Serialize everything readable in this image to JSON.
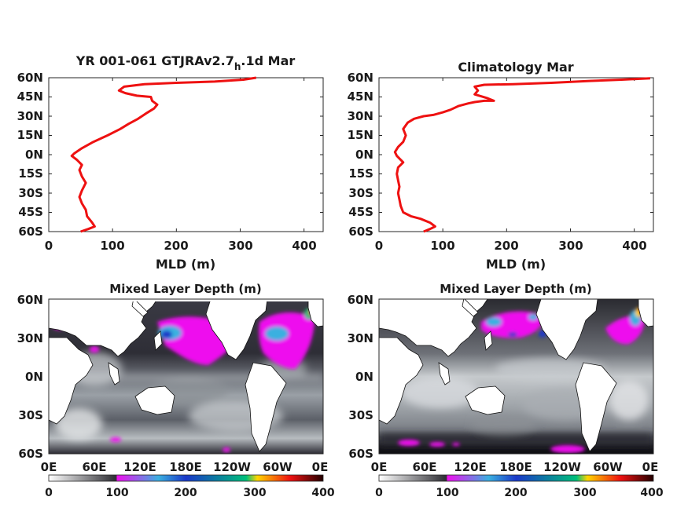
{
  "chart_data": [
    {
      "type": "line",
      "title": "YR 001-061 GTJRAv2.7",
      "title_subscript": "h",
      "title_suffix": ".1d Mar",
      "xlabel": "MLD (m)",
      "xlim": [
        0,
        430
      ],
      "ylim": [
        -60,
        60
      ],
      "x_ticks": [
        "0",
        "100",
        "200",
        "300",
        "400"
      ],
      "y_ticks": [
        "60N",
        "45N",
        "30N",
        "15N",
        "0N",
        "15S",
        "30S",
        "45S",
        "60S"
      ],
      "color": "#ee1111",
      "points": [
        [
          325,
          60
        ],
        [
          305,
          58.5
        ],
        [
          260,
          57
        ],
        [
          200,
          56
        ],
        [
          150,
          55
        ],
        [
          118,
          53
        ],
        [
          110,
          50
        ],
        [
          120,
          48
        ],
        [
          138,
          46
        ],
        [
          160,
          45
        ],
        [
          162,
          42
        ],
        [
          170,
          39
        ],
        [
          165,
          36
        ],
        [
          152,
          32
        ],
        [
          140,
          28
        ],
        [
          125,
          24
        ],
        [
          112,
          20
        ],
        [
          92,
          15
        ],
        [
          70,
          10
        ],
        [
          52,
          5
        ],
        [
          40,
          1
        ],
        [
          36,
          -1
        ],
        [
          44,
          -4
        ],
        [
          52,
          -8
        ],
        [
          48,
          -12
        ],
        [
          52,
          -17
        ],
        [
          58,
          -22
        ],
        [
          52,
          -28
        ],
        [
          48,
          -33
        ],
        [
          52,
          -38
        ],
        [
          58,
          -43
        ],
        [
          60,
          -48
        ],
        [
          68,
          -53
        ],
        [
          72,
          -56
        ],
        [
          62,
          -58
        ],
        [
          50,
          -60
        ]
      ]
    },
    {
      "type": "line",
      "title": "Climatology Mar",
      "xlabel": "MLD (m)",
      "xlim": [
        0,
        430
      ],
      "ylim": [
        -60,
        60
      ],
      "x_ticks": [
        "0",
        "100",
        "200",
        "300",
        "400"
      ],
      "y_ticks": [
        "60N",
        "45N",
        "30N",
        "15N",
        "0N",
        "15S",
        "30S",
        "45S",
        "60S"
      ],
      "color": "#ee1111",
      "points": [
        [
          425,
          59.5
        ],
        [
          380,
          58.5
        ],
        [
          330,
          57.5
        ],
        [
          270,
          56
        ],
        [
          210,
          55
        ],
        [
          165,
          54.5
        ],
        [
          150,
          53
        ],
        [
          155,
          50
        ],
        [
          150,
          47
        ],
        [
          170,
          44
        ],
        [
          180,
          42
        ],
        [
          165,
          42
        ],
        [
          150,
          41
        ],
        [
          140,
          40
        ],
        [
          125,
          38
        ],
        [
          112,
          35
        ],
        [
          100,
          33
        ],
        [
          85,
          31
        ],
        [
          70,
          30
        ],
        [
          55,
          28
        ],
        [
          45,
          25
        ],
        [
          38,
          20
        ],
        [
          42,
          15
        ],
        [
          38,
          10
        ],
        [
          30,
          6
        ],
        [
          25,
          2
        ],
        [
          28,
          -1
        ],
        [
          32,
          -3
        ],
        [
          38,
          -6
        ],
        [
          30,
          -10
        ],
        [
          28,
          -15
        ],
        [
          30,
          -20
        ],
        [
          32,
          -25
        ],
        [
          30,
          -30
        ],
        [
          32,
          -35
        ],
        [
          34,
          -40
        ],
        [
          38,
          -45
        ],
        [
          50,
          -48
        ],
        [
          65,
          -50
        ],
        [
          80,
          -53
        ],
        [
          88,
          -56
        ],
        [
          80,
          -58
        ],
        [
          70,
          -60
        ]
      ]
    },
    {
      "type": "heatmap",
      "title": "Mixed Layer Depth (m)",
      "x_ticks": [
        "0E",
        "60E",
        "120E",
        "180E",
        "120W",
        "60W",
        "0E"
      ],
      "y_ticks": [
        "60N",
        "30N",
        "0N",
        "30S",
        "60S"
      ],
      "colorbar": {
        "ticks": [
          "0",
          "100",
          "200",
          "300",
          "400"
        ],
        "range": [
          0,
          400
        ],
        "stops": [
          "#ffffff",
          "#2d2d33",
          "#ee11ee",
          "#3bb0e0",
          "#1a38c8",
          "#00c07a",
          "#ffd400",
          "#ee1111",
          "#220000"
        ]
      }
    },
    {
      "type": "heatmap",
      "title": "Mixed Layer Depth (m)",
      "x_ticks": [
        "0E",
        "60E",
        "120E",
        "180E",
        "120W",
        "60W",
        "0E"
      ],
      "y_ticks": [
        "60N",
        "30N",
        "0N",
        "30S",
        "60S"
      ],
      "colorbar": {
        "ticks": [
          "0",
          "100",
          "200",
          "300",
          "400"
        ],
        "range": [
          0,
          400
        ],
        "stops": [
          "#ffffff",
          "#2d2d33",
          "#ee11ee",
          "#3bb0e0",
          "#1a38c8",
          "#00c07a",
          "#ffd400",
          "#ee1111",
          "#220000"
        ]
      }
    }
  ]
}
